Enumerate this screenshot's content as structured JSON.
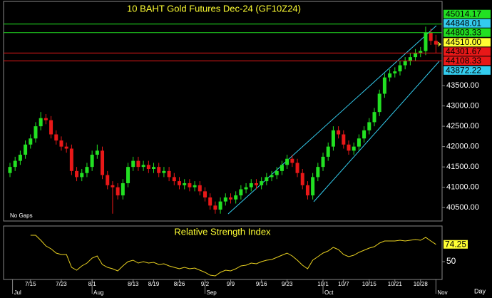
{
  "chart_data": [
    {
      "type": "candlestick",
      "title": "10 BAHT Gold Futures Dec-24 (GF10Z24)",
      "note": "No Gaps",
      "x_label": "Day",
      "up_color": "#22e022",
      "down_color": "#e81818",
      "xlim": [
        -1.25,
        84.2
      ],
      "ylim": [
        40170,
        45570
      ],
      "yticks": [
        {
          "value": 40500,
          "label": "40500.00"
        },
        {
          "value": 41000,
          "label": "41000.00"
        },
        {
          "value": 41500,
          "label": "41500.00"
        },
        {
          "value": 42000,
          "label": "42000.00"
        },
        {
          "value": 42500,
          "label": "42500.00"
        },
        {
          "value": 43000,
          "label": "43000.00"
        },
        {
          "value": 43500,
          "label": "43500.00"
        }
      ],
      "xticks": [
        {
          "value": 4,
          "label": "7/15"
        },
        {
          "value": 10,
          "label": "7/23"
        },
        {
          "value": 16,
          "label": "8/1"
        },
        {
          "value": 24,
          "label": "8/13"
        },
        {
          "value": 28,
          "label": "8/19"
        },
        {
          "value": 33,
          "label": "8/26"
        },
        {
          "value": 38,
          "label": "9/2"
        },
        {
          "value": 43,
          "label": "9/9"
        },
        {
          "value": 49,
          "label": "9/16"
        },
        {
          "value": 54,
          "label": "9/23"
        },
        {
          "value": 61,
          "label": "10/1"
        },
        {
          "value": 65,
          "label": "10/7"
        },
        {
          "value": 70,
          "label": "10/15"
        },
        {
          "value": 75,
          "label": "10/21"
        },
        {
          "value": 80,
          "label": "10/28"
        }
      ],
      "months": [
        {
          "value": 0.5,
          "label": "Jul"
        },
        {
          "value": 16,
          "label": "Aug"
        },
        {
          "value": 38,
          "label": "Sep"
        },
        {
          "value": 61,
          "label": "Oct"
        },
        {
          "value": 83,
          "label": "Nov"
        }
      ],
      "levels": [
        {
          "value": 45014.17,
          "color": "#22e022",
          "line": true
        },
        {
          "value": 44848.01,
          "color": "#33ccee",
          "line": false
        },
        {
          "value": 44803.33,
          "color": "#22e022",
          "line": true
        },
        {
          "value": 44510,
          "label": "44510.00",
          "color": "#ffff33",
          "line": false
        },
        {
          "value": 44301.67,
          "color": "#e81818",
          "line": true
        },
        {
          "value": 44108.33,
          "color": "#e81818",
          "line": true
        },
        {
          "value": 43872.22,
          "color": "#33ccee",
          "line": false
        }
      ],
      "open": [
        41350,
        41500,
        41650,
        41800,
        42050,
        42200,
        42500,
        42700,
        42650,
        42300,
        42150,
        42000,
        41950,
        41400,
        41250,
        41350,
        41500,
        41800,
        41900,
        41300,
        41050,
        41000,
        40800,
        41100,
        41500,
        41650,
        41500,
        41550,
        41450,
        41500,
        41350,
        41400,
        41250,
        41150,
        41050,
        41100,
        41000,
        41050,
        40900,
        40750,
        40550,
        40450,
        40650,
        40750,
        40700,
        40800,
        40950,
        41000,
        41100,
        41050,
        41150,
        41250,
        41300,
        41400,
        41550,
        41700,
        41600,
        41350,
        41050,
        40800,
        41250,
        41500,
        41750,
        42000,
        42400,
        42300,
        42050,
        41900,
        42000,
        42200,
        42400,
        42600,
        42850,
        43300,
        43700,
        43800,
        43850,
        44000,
        44100,
        44200,
        44300,
        44350,
        44800,
        44600
      ],
      "high": [
        41600,
        41750,
        41900,
        42150,
        42300,
        42600,
        42850,
        42800,
        42750,
        42400,
        42250,
        42100,
        42050,
        41500,
        41450,
        41600,
        41900,
        42050,
        42000,
        41400,
        41150,
        41100,
        41200,
        41600,
        41750,
        41750,
        41650,
        41650,
        41600,
        41600,
        41500,
        41500,
        41350,
        41250,
        41200,
        41200,
        41150,
        41150,
        41000,
        40850,
        40650,
        40750,
        40850,
        40850,
        40900,
        41050,
        41100,
        41200,
        41200,
        41250,
        41350,
        41400,
        41500,
        41650,
        41800,
        41800,
        41700,
        41450,
        41150,
        41350,
        41600,
        41850,
        42100,
        42500,
        42500,
        42400,
        42150,
        42100,
        42300,
        42500,
        42700,
        42950,
        43400,
        43800,
        43900,
        43950,
        44100,
        44200,
        44300,
        44400,
        44450,
        44950,
        44900,
        44750
      ],
      "low": [
        41250,
        41400,
        41550,
        41700,
        41950,
        42100,
        42400,
        42550,
        42200,
        42050,
        41900,
        41850,
        41300,
        41150,
        41150,
        41250,
        41400,
        41700,
        41200,
        40950,
        40350,
        40700,
        40700,
        41000,
        41400,
        41400,
        41400,
        41350,
        41350,
        41250,
        41250,
        41150,
        41050,
        40950,
        40950,
        40900,
        40900,
        40800,
        40650,
        40450,
        40350,
        40350,
        40550,
        40600,
        40600,
        40700,
        40850,
        40900,
        40950,
        40950,
        41050,
        41150,
        41200,
        41300,
        41450,
        41500,
        41250,
        40950,
        40700,
        40700,
        41150,
        41400,
        41650,
        41900,
        42200,
        41950,
        41800,
        41800,
        41900,
        42100,
        42300,
        42500,
        42750,
        43200,
        43600,
        43700,
        43750,
        43900,
        44000,
        44100,
        44200,
        44250,
        44500,
        44300
      ],
      "close": [
        41500,
        41650,
        41800,
        42050,
        42200,
        42500,
        42700,
        42650,
        42300,
        42150,
        42000,
        41950,
        41400,
        41250,
        41350,
        41500,
        41800,
        41900,
        41300,
        41050,
        41000,
        40800,
        41100,
        41500,
        41650,
        41500,
        41550,
        41450,
        41500,
        41350,
        41400,
        41250,
        41150,
        41050,
        41100,
        41000,
        41050,
        40900,
        40750,
        40550,
        40450,
        40650,
        40750,
        40700,
        40800,
        40950,
        41000,
        41100,
        41050,
        41150,
        41250,
        41300,
        41400,
        41550,
        41700,
        41600,
        41350,
        41050,
        40800,
        41250,
        41500,
        41750,
        42000,
        42400,
        42300,
        42050,
        41900,
        42000,
        42200,
        42400,
        42600,
        42850,
        43300,
        43700,
        43800,
        43850,
        44000,
        44100,
        44200,
        44300,
        44350,
        44800,
        44600,
        44510
      ]
    },
    {
      "type": "line",
      "title": "Relative Strength Index",
      "color": "#e8d020",
      "ylim": [
        25,
        100
      ],
      "yticks": [
        50
      ],
      "values": [
        null,
        null,
        null,
        null,
        87,
        87,
        80,
        72,
        68,
        62,
        60,
        60,
        42,
        38,
        44,
        48,
        55,
        58,
        46,
        42,
        40,
        37,
        44,
        50,
        52,
        48,
        50,
        48,
        49,
        46,
        47,
        44,
        42,
        40,
        42,
        40,
        41,
        38,
        35,
        31,
        30,
        35,
        38,
        37,
        40,
        44,
        45,
        48,
        47,
        50,
        52,
        53,
        56,
        59,
        62,
        58,
        52,
        45,
        40,
        52,
        57,
        62,
        65,
        70,
        67,
        60,
        57,
        59,
        63,
        66,
        69,
        71,
        76,
        79,
        79,
        79,
        80,
        79,
        80,
        81,
        80,
        84,
        79,
        74.25
      ]
    }
  ]
}
